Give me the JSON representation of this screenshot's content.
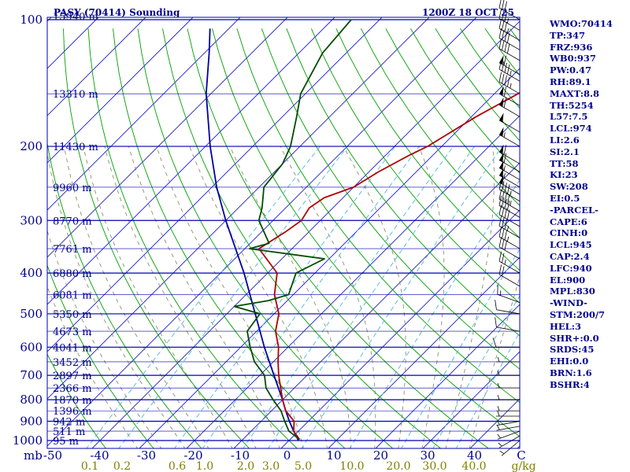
{
  "header": {
    "title": "PASY (70414) Sounding",
    "time": "1200Z 18 OCT 25"
  },
  "indices": [
    "WMO:70414",
    "TP:347",
    "FRZ:936",
    "WB0:937",
    "PW:0.47",
    "RH:89.1",
    "MAXT:8.8",
    "TH:5254",
    "L57:7.5",
    "LCL:974",
    "LI:2.6",
    "SI:2.1",
    "TT:58",
    "KI:23",
    "SW:208",
    "EI:0.5",
    "-PARCEL-",
    "CAPE:6",
    "CINH:0",
    "LCL:945",
    "CAP:2.4",
    "LFC:940",
    "EL:900",
    "MPL:830",
    "-WIND-",
    "STM:200/7",
    "HEL:3",
    "SHR+:0.0",
    "SRDS:45",
    "EHI:0.0",
    "BRN:1.6",
    "BSHR:4"
  ],
  "chart_data": {
    "type": "skew-t",
    "pressure_unit": "mb",
    "temperature_unit": "C",
    "mixing_ratio_unit": "g/kg",
    "pressure_range": [
      1000,
      100
    ],
    "temperature_range": [
      -50,
      50
    ],
    "pressure_levels": [
      {
        "p": 1000,
        "label": "1000"
      },
      {
        "p": 900,
        "label": "900"
      },
      {
        "p": 800,
        "label": "800"
      },
      {
        "p": 700,
        "label": "700"
      },
      {
        "p": 600,
        "label": "600"
      },
      {
        "p": 500,
        "label": "500"
      },
      {
        "p": 400,
        "label": "400"
      },
      {
        "p": 300,
        "label": "300"
      },
      {
        "p": 200,
        "label": "200"
      },
      {
        "p": 100,
        "label": "100"
      }
    ],
    "height_labels": [
      {
        "p": 98,
        "label": "15940 m"
      },
      {
        "p": 150,
        "label": "13310 m"
      },
      {
        "p": 200,
        "label": "11430 m"
      },
      {
        "p": 250,
        "label": "9960 m"
      },
      {
        "p": 300,
        "label": "8770 m"
      },
      {
        "p": 350,
        "label": "7761 m"
      },
      {
        "p": 400,
        "label": "6880 m"
      },
      {
        "p": 450,
        "label": "6081 m"
      },
      {
        "p": 500,
        "label": "5350 m"
      },
      {
        "p": 550,
        "label": "4673 m"
      },
      {
        "p": 600,
        "label": "4041 m"
      },
      {
        "p": 650,
        "label": "3452 m"
      },
      {
        "p": 700,
        "label": "2897 m"
      },
      {
        "p": 750,
        "label": "2366 m"
      },
      {
        "p": 800,
        "label": "1870 m"
      },
      {
        "p": 850,
        "label": "1396 m"
      },
      {
        "p": 900,
        "label": "942 m"
      },
      {
        "p": 950,
        "label": "511 m"
      },
      {
        "p": 1000,
        "label": "95 m"
      }
    ],
    "temperature_ticks": [
      "-50",
      "-40",
      "-30",
      "-20",
      "-10",
      "0",
      "10",
      "20",
      "30",
      "40",
      "C"
    ],
    "mixing_ratio_ticks": [
      "0.1",
      "0.2",
      "0.6",
      "1.0",
      "2.0",
      "3.0",
      "5.0",
      "10.0",
      "20.0",
      "30.0",
      "40.0",
      "g/kg"
    ],
    "series": [
      {
        "id": "parcel",
        "points": [
          {
            "p": 1000,
            "t": 2
          },
          {
            "p": 950,
            "t": -1
          },
          {
            "p": 900,
            "t": -4
          },
          {
            "p": 850,
            "t": -7
          },
          {
            "p": 800,
            "t": -10
          },
          {
            "p": 700,
            "t": -17
          },
          {
            "p": 600,
            "t": -25
          },
          {
            "p": 500,
            "t": -34
          },
          {
            "p": 400,
            "t": -45
          },
          {
            "p": 300,
            "t": -60
          },
          {
            "p": 250,
            "t": -69
          },
          {
            "p": 200,
            "t": -79
          },
          {
            "p": 150,
            "t": -91
          },
          {
            "p": 120,
            "t": -99
          },
          {
            "p": 105,
            "t": -104
          }
        ]
      },
      {
        "id": "temperature",
        "points": [
          {
            "p": 994,
            "t": 2
          },
          {
            "p": 950,
            "t": -1
          },
          {
            "p": 900,
            "t": -3
          },
          {
            "p": 850,
            "t": -7
          },
          {
            "p": 800,
            "t": -10
          },
          {
            "p": 700,
            "t": -16
          },
          {
            "p": 650,
            "t": -19
          },
          {
            "p": 600,
            "t": -22
          },
          {
            "p": 550,
            "t": -26
          },
          {
            "p": 500,
            "t": -29
          },
          {
            "p": 450,
            "t": -34
          },
          {
            "p": 400,
            "t": -38
          },
          {
            "p": 350,
            "t": -47
          },
          {
            "p": 320,
            "t": -45
          },
          {
            "p": 300,
            "t": -44
          },
          {
            "p": 280,
            "t": -45
          },
          {
            "p": 265,
            "t": -44
          },
          {
            "p": 250,
            "t": -40
          },
          {
            "p": 230,
            "t": -38
          },
          {
            "p": 210,
            "t": -35
          },
          {
            "p": 200,
            "t": -33
          },
          {
            "p": 170,
            "t": -29
          },
          {
            "p": 150,
            "t": -25
          },
          {
            "p": 130,
            "t": -20
          },
          {
            "p": 115,
            "t": -15
          },
          {
            "p": 100,
            "t": -10
          }
        ]
      },
      {
        "id": "dewpoint",
        "points": [
          {
            "p": 994,
            "t": 2
          },
          {
            "p": 950,
            "t": -2
          },
          {
            "p": 900,
            "t": -5
          },
          {
            "p": 850,
            "t": -8
          },
          {
            "p": 800,
            "t": -12
          },
          {
            "p": 750,
            "t": -16
          },
          {
            "p": 700,
            "t": -19
          },
          {
            "p": 650,
            "t": -24
          },
          {
            "p": 600,
            "t": -28
          },
          {
            "p": 550,
            "t": -32
          },
          {
            "p": 500,
            "t": -33
          },
          {
            "p": 480,
            "t": -40
          },
          {
            "p": 465,
            "t": -34
          },
          {
            "p": 450,
            "t": -31
          },
          {
            "p": 400,
            "t": -34
          },
          {
            "p": 370,
            "t": -31
          },
          {
            "p": 350,
            "t": -49
          },
          {
            "p": 340,
            "t": -46
          },
          {
            "p": 300,
            "t": -53
          },
          {
            "p": 280,
            "t": -55
          },
          {
            "p": 250,
            "t": -59
          },
          {
            "p": 220,
            "t": -60
          },
          {
            "p": 200,
            "t": -62
          },
          {
            "p": 170,
            "t": -67
          },
          {
            "p": 150,
            "t": -71
          },
          {
            "p": 120,
            "t": -75
          },
          {
            "p": 100,
            "t": -76
          }
        ]
      }
    ],
    "wind_barbs": [
      {
        "p": 1000,
        "dir": 230,
        "spd": 5
      },
      {
        "p": 975,
        "dir": 240,
        "spd": 5
      },
      {
        "p": 950,
        "dir": 250,
        "spd": 5
      },
      {
        "p": 925,
        "dir": 260,
        "spd": 5
      },
      {
        "p": 900,
        "dir": 260,
        "spd": 5
      },
      {
        "p": 875,
        "dir": 270,
        "spd": 5
      },
      {
        "p": 850,
        "dir": 270,
        "spd": 5
      },
      {
        "p": 800,
        "dir": 270,
        "spd": 5
      },
      {
        "p": 750,
        "dir": 270,
        "spd": 5
      },
      {
        "p": 700,
        "dir": 270,
        "spd": 5
      },
      {
        "p": 650,
        "dir": 270,
        "spd": 5
      },
      {
        "p": 600,
        "dir": 270,
        "spd": 10
      },
      {
        "p": 550,
        "dir": 280,
        "spd": 10
      },
      {
        "p": 500,
        "dir": 280,
        "spd": 10
      },
      {
        "p": 470,
        "dir": 290,
        "spd": 15
      },
      {
        "p": 430,
        "dir": 300,
        "spd": 20
      },
      {
        "p": 400,
        "dir": 300,
        "spd": 25
      },
      {
        "p": 370,
        "dir": 300,
        "spd": 30
      },
      {
        "p": 350,
        "dir": 300,
        "spd": 35
      },
      {
        "p": 330,
        "dir": 300,
        "spd": 35
      },
      {
        "p": 310,
        "dir": 300,
        "spd": 40
      },
      {
        "p": 295,
        "dir": 300,
        "spd": 40
      },
      {
        "p": 285,
        "dir": 300,
        "spd": 45
      },
      {
        "p": 270,
        "dir": 300,
        "spd": 45
      },
      {
        "p": 260,
        "dir": 300,
        "spd": 50
      },
      {
        "p": 250,
        "dir": 300,
        "spd": 55
      },
      {
        "p": 240,
        "dir": 300,
        "spd": 55
      },
      {
        "p": 230,
        "dir": 300,
        "spd": 60
      },
      {
        "p": 220,
        "dir": 300,
        "spd": 60
      },
      {
        "p": 200,
        "dir": 300,
        "spd": 55
      },
      {
        "p": 185,
        "dir": 300,
        "spd": 50
      },
      {
        "p": 170,
        "dir": 300,
        "spd": 60
      },
      {
        "p": 160,
        "dir": 300,
        "spd": 60
      },
      {
        "p": 150,
        "dir": 300,
        "spd": 45
      },
      {
        "p": 140,
        "dir": 300,
        "spd": 45
      },
      {
        "p": 135,
        "dir": 300,
        "spd": 60
      },
      {
        "p": 125,
        "dir": 300,
        "spd": 40
      },
      {
        "p": 118,
        "dir": 300,
        "spd": 40
      },
      {
        "p": 112,
        "dir": 300,
        "spd": 35
      },
      {
        "p": 106,
        "dir": 300,
        "spd": 35
      },
      {
        "p": 100,
        "dir": 300,
        "spd": 30
      }
    ],
    "colors": {
      "temperature": "#b00000",
      "dewpoint": "#004d00",
      "parcel": "#0000a0",
      "isobar": "#0000b0",
      "isotherm": "#1a1acd",
      "dry_adiabat": "#00a000",
      "moist_adiabat": "#808060",
      "mixing_ratio": "#4db8d8",
      "text": "#00008b",
      "mixing_ratio_text": "#808000"
    }
  }
}
